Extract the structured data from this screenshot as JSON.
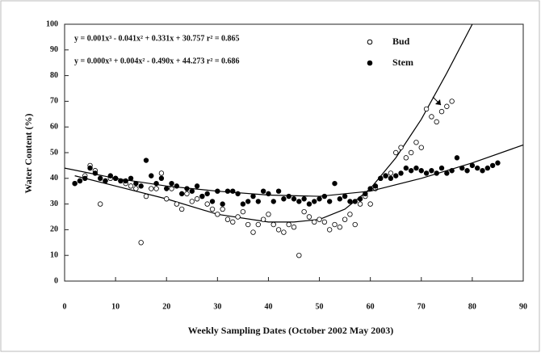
{
  "chart_data": {
    "type": "scatter",
    "xlabel": "Weekly Sampling Dates (October 2002 May 2003)",
    "ylabel": "Water Content (%)",
    "xlim": [
      0,
      90
    ],
    "xticks": [
      0,
      10,
      20,
      30,
      40,
      50,
      60,
      70,
      80,
      90
    ],
    "ylim": [
      0,
      100
    ],
    "yticks": [
      0,
      10,
      20,
      30,
      40,
      50,
      60,
      70,
      80,
      90,
      100
    ],
    "annotations": [
      "y = 0.001x³ - 0.041x² + 0.331x + 30.757   r² = 0.865",
      "y = 0.000x³ + 0.004x² - 0.490x + 44.273   r² = 0.686"
    ],
    "series": [
      {
        "name": "Bud",
        "color": "#000000",
        "marker": "open",
        "x": [
          2,
          3,
          4,
          5,
          6,
          7,
          8,
          9,
          10,
          11,
          12,
          13,
          14,
          15,
          16,
          17,
          18,
          19,
          20,
          21,
          22,
          23,
          24,
          25,
          26,
          27,
          28,
          29,
          30,
          31,
          32,
          33,
          34,
          35,
          36,
          37,
          38,
          39,
          40,
          41,
          42,
          43,
          44,
          45,
          46,
          47,
          48,
          49,
          50,
          51,
          52,
          53,
          54,
          55,
          56,
          57,
          58,
          59,
          60,
          61,
          62,
          63,
          64,
          65,
          66,
          67,
          68,
          69,
          70,
          71,
          72,
          73,
          74,
          75,
          76
        ],
        "values": [
          38,
          39,
          41,
          45,
          43,
          30,
          39,
          40,
          40,
          39,
          38,
          37,
          36,
          15,
          33,
          36,
          36,
          42,
          32,
          36,
          30,
          28,
          34,
          31,
          32,
          33,
          30,
          28,
          26,
          28,
          24,
          23,
          25,
          27,
          22,
          19,
          22,
          24,
          26,
          22,
          20,
          19,
          22,
          21,
          10,
          27,
          25,
          23,
          24,
          23,
          20,
          22,
          21,
          24,
          26,
          22,
          30,
          33,
          30,
          36,
          40,
          41,
          42,
          50,
          52,
          48,
          50,
          54,
          52,
          67,
          64,
          62,
          66,
          68,
          70
        ],
        "trend": {
          "x": [
            2,
            10,
            20,
            30,
            40,
            45,
            50,
            55,
            60,
            65,
            70,
            75,
            80
          ],
          "y": [
            41,
            37,
            32,
            26,
            23,
            23,
            24,
            28,
            36,
            48,
            63,
            81,
            100
          ]
        }
      },
      {
        "name": "Stem",
        "color": "#000000",
        "marker": "filled",
        "x": [
          2,
          3,
          4,
          5,
          6,
          7,
          8,
          9,
          10,
          11,
          12,
          13,
          14,
          15,
          16,
          17,
          18,
          19,
          20,
          21,
          22,
          23,
          24,
          25,
          26,
          27,
          28,
          29,
          30,
          31,
          32,
          33,
          34,
          35,
          36,
          37,
          38,
          39,
          40,
          41,
          42,
          43,
          44,
          45,
          46,
          47,
          48,
          49,
          50,
          51,
          52,
          53,
          54,
          55,
          56,
          57,
          58,
          59,
          60,
          61,
          62,
          63,
          64,
          65,
          66,
          67,
          68,
          69,
          70,
          71,
          72,
          73,
          74,
          75,
          76,
          77,
          78,
          79,
          80,
          81,
          82,
          83,
          84,
          85
        ],
        "values": [
          38,
          39,
          40,
          44,
          42,
          40,
          39,
          41,
          40,
          39,
          39,
          40,
          38,
          37,
          47,
          41,
          38,
          40,
          36,
          38,
          37,
          34,
          36,
          35,
          37,
          33,
          34,
          31,
          35,
          30,
          35,
          35,
          34,
          30,
          31,
          33,
          31,
          35,
          34,
          31,
          35,
          32,
          33,
          32,
          31,
          32,
          30,
          31,
          32,
          33,
          31,
          38,
          32,
          33,
          31,
          31,
          32,
          34,
          36,
          37,
          40,
          41,
          40,
          41,
          42,
          44,
          43,
          44,
          43,
          42,
          43,
          42,
          44,
          42,
          43,
          48,
          44,
          43,
          45,
          44,
          43,
          44,
          45,
          46
        ],
        "trend": {
          "x": [
            0,
            10,
            20,
            30,
            40,
            50,
            60,
            70,
            80,
            90
          ],
          "y": [
            44,
            40,
            37,
            35,
            33.5,
            33,
            35,
            40,
            46,
            53
          ]
        }
      }
    ]
  }
}
